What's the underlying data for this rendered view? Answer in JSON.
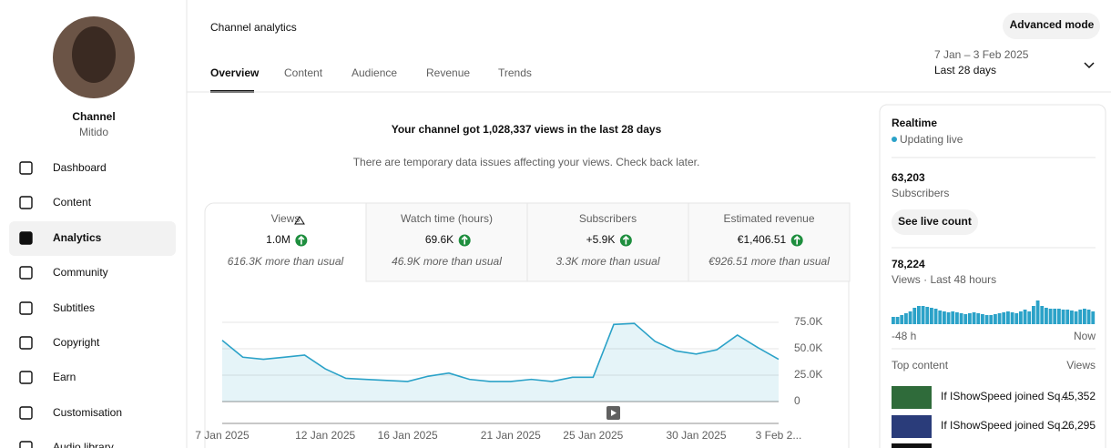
{
  "sidebar": {
    "channel_name": "Channel",
    "handle": "Mitido",
    "nav": [
      "Dashboard",
      "Content",
      "Analytics",
      "Community",
      "Subtitles",
      "Copyright",
      "Earn",
      "Customisation",
      "Audio library"
    ]
  },
  "header": {
    "title": "Channel analytics",
    "tabs": [
      "Overview",
      "Content",
      "Audience",
      "Revenue",
      "Trends"
    ],
    "advanced_mode": "Advanced mode",
    "date_range": "7 Jan – 3 Feb 2025",
    "period": "Last 28 days"
  },
  "summary": {
    "headline": "Your channel got 1,028,337 views in the last 28 days",
    "notice": "There are temporary data issues affecting your views. Check back later."
  },
  "metrics": [
    {
      "label": "Views",
      "value": "1.0M",
      "note": "616.3K more than usual"
    },
    {
      "label": "Watch time (hours)",
      "value": "69.6K",
      "note": "46.9K more than usual"
    },
    {
      "label": "Subscribers",
      "value": "+5.9K",
      "note": "3.3K more than usual"
    },
    {
      "label": "Estimated revenue",
      "value": "€1,406.51",
      "note": "€926.51 more than usual"
    }
  ],
  "realtime": {
    "title": "Realtime",
    "status": "Updating live",
    "subscribers": "63,203",
    "subscribers_label": "Subscribers",
    "button": "See live count",
    "views": "78,224",
    "views_label": "Views · Last 48 hours",
    "start_label": "-48 h",
    "end_label": "Now",
    "top_content": "Top content",
    "views_header": "Views",
    "top_items": [
      {
        "title": "If IShowSpeed joined Sq...",
        "views": "45,352"
      },
      {
        "title": "If IShowSpeed joined Sq...",
        "views": "26,295"
      }
    ]
  },
  "chart_data": [
    {
      "type": "line",
      "categories": [
        "7 Jan 2025",
        null,
        null,
        null,
        null,
        "12 Jan 2025",
        null,
        null,
        null,
        "16 Jan 2025",
        null,
        null,
        null,
        null,
        "21 Jan 2025",
        null,
        null,
        null,
        "25 Jan 2025",
        null,
        null,
        null,
        null,
        "30 Jan 2025",
        null,
        null,
        null,
        "3 Feb 2..."
      ],
      "values": [
        58000,
        42000,
        40000,
        42000,
        44000,
        31000,
        22000,
        21000,
        20000,
        19000,
        24000,
        27000,
        21000,
        19000,
        19000,
        21000,
        19000,
        23000,
        23000,
        73000,
        74000,
        57000,
        48000,
        45000,
        49000,
        63000,
        51000,
        40000
      ],
      "color": "#2ba2c8",
      "ylim": [
        0,
        75000
      ],
      "yticks": [
        0,
        {
          "value": 25000,
          "label": "25.0K"
        },
        {
          "value": 50000,
          "label": "50.0K"
        },
        {
          "value": 75000,
          "label": "75.0K"
        }
      ],
      "grid": true
    },
    {
      "type": "bar",
      "values": [
        800,
        800,
        1000,
        1200,
        1400,
        1800,
        2000,
        2000,
        1900,
        1800,
        1700,
        1500,
        1400,
        1300,
        1400,
        1300,
        1200,
        1100,
        1200,
        1300,
        1200,
        1100,
        1000,
        1000,
        1100,
        1200,
        1300,
        1400,
        1300,
        1200,
        1400,
        1600,
        1400,
        2000,
        2600,
        2000,
        1800,
        1700,
        1700,
        1700,
        1600,
        1600,
        1500,
        1400,
        1600,
        1700,
        1600,
        1400
      ],
      "color": "#2ba2c8",
      "ylim": [
        0,
        3000
      ]
    }
  ]
}
